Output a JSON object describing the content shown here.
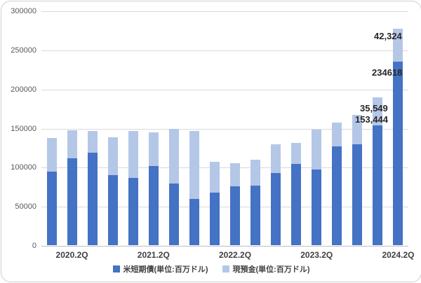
{
  "frame": {
    "background": "#ffffff",
    "border_color": "#d0d0d0"
  },
  "chart_data": {
    "type": "bar",
    "stacked": true,
    "title": "",
    "xlabel": "",
    "ylabel": "",
    "unit": "百万ドル",
    "categories": [
      "2020.1Q",
      "2020.2Q",
      "2020.3Q",
      "2020.4Q",
      "2021.1Q",
      "2021.2Q",
      "2021.3Q",
      "2021.4Q",
      "2022.1Q",
      "2022.2Q",
      "2022.3Q",
      "2022.4Q",
      "2023.1Q",
      "2023.2Q",
      "2023.3Q",
      "2023.4Q",
      "2024.1Q",
      "2024.2Q"
    ],
    "series": [
      {
        "name": "米短期債(単位:百万ドル)",
        "color": "#4472C4",
        "values": [
          94000,
          111000,
          118000,
          90000,
          86000,
          101000,
          79000,
          59000,
          67000,
          75000,
          76000,
          92000,
          104000,
          97000,
          126000,
          129000,
          153444,
          234618
        ]
      },
      {
        "name": "現預金(単位:百万ドル)",
        "color": "#B4C7E7",
        "values": [
          43000,
          36000,
          28000,
          48000,
          60000,
          43000,
          70000,
          87000,
          40000,
          30000,
          33000,
          37000,
          27000,
          51000,
          31000,
          38000,
          35549,
          42324
        ]
      }
    ],
    "ylim": [
      0,
      300000
    ],
    "yticks": [
      0,
      50000,
      100000,
      150000,
      200000,
      250000,
      300000
    ],
    "xtick_labels": [
      {
        "index": 1,
        "label": "2020.2Q"
      },
      {
        "index": 5,
        "label": "2021.2Q"
      },
      {
        "index": 9,
        "label": "2022.2Q"
      },
      {
        "index": 13,
        "label": "2023.2Q"
      },
      {
        "index": 17,
        "label": "2024.2Q"
      }
    ],
    "grid": "horizontal",
    "legend_position": "bottom",
    "annotations": [
      {
        "text": "42,324",
        "series": "現預金",
        "category": "2024.2Q"
      },
      {
        "text": "234618",
        "series": "米短期債",
        "category": "2024.2Q"
      },
      {
        "text": "35,549",
        "series": "現預金",
        "category": "2024.1Q"
      },
      {
        "text": "153,444",
        "series": "米短期債",
        "category": "2024.1Q"
      }
    ]
  }
}
